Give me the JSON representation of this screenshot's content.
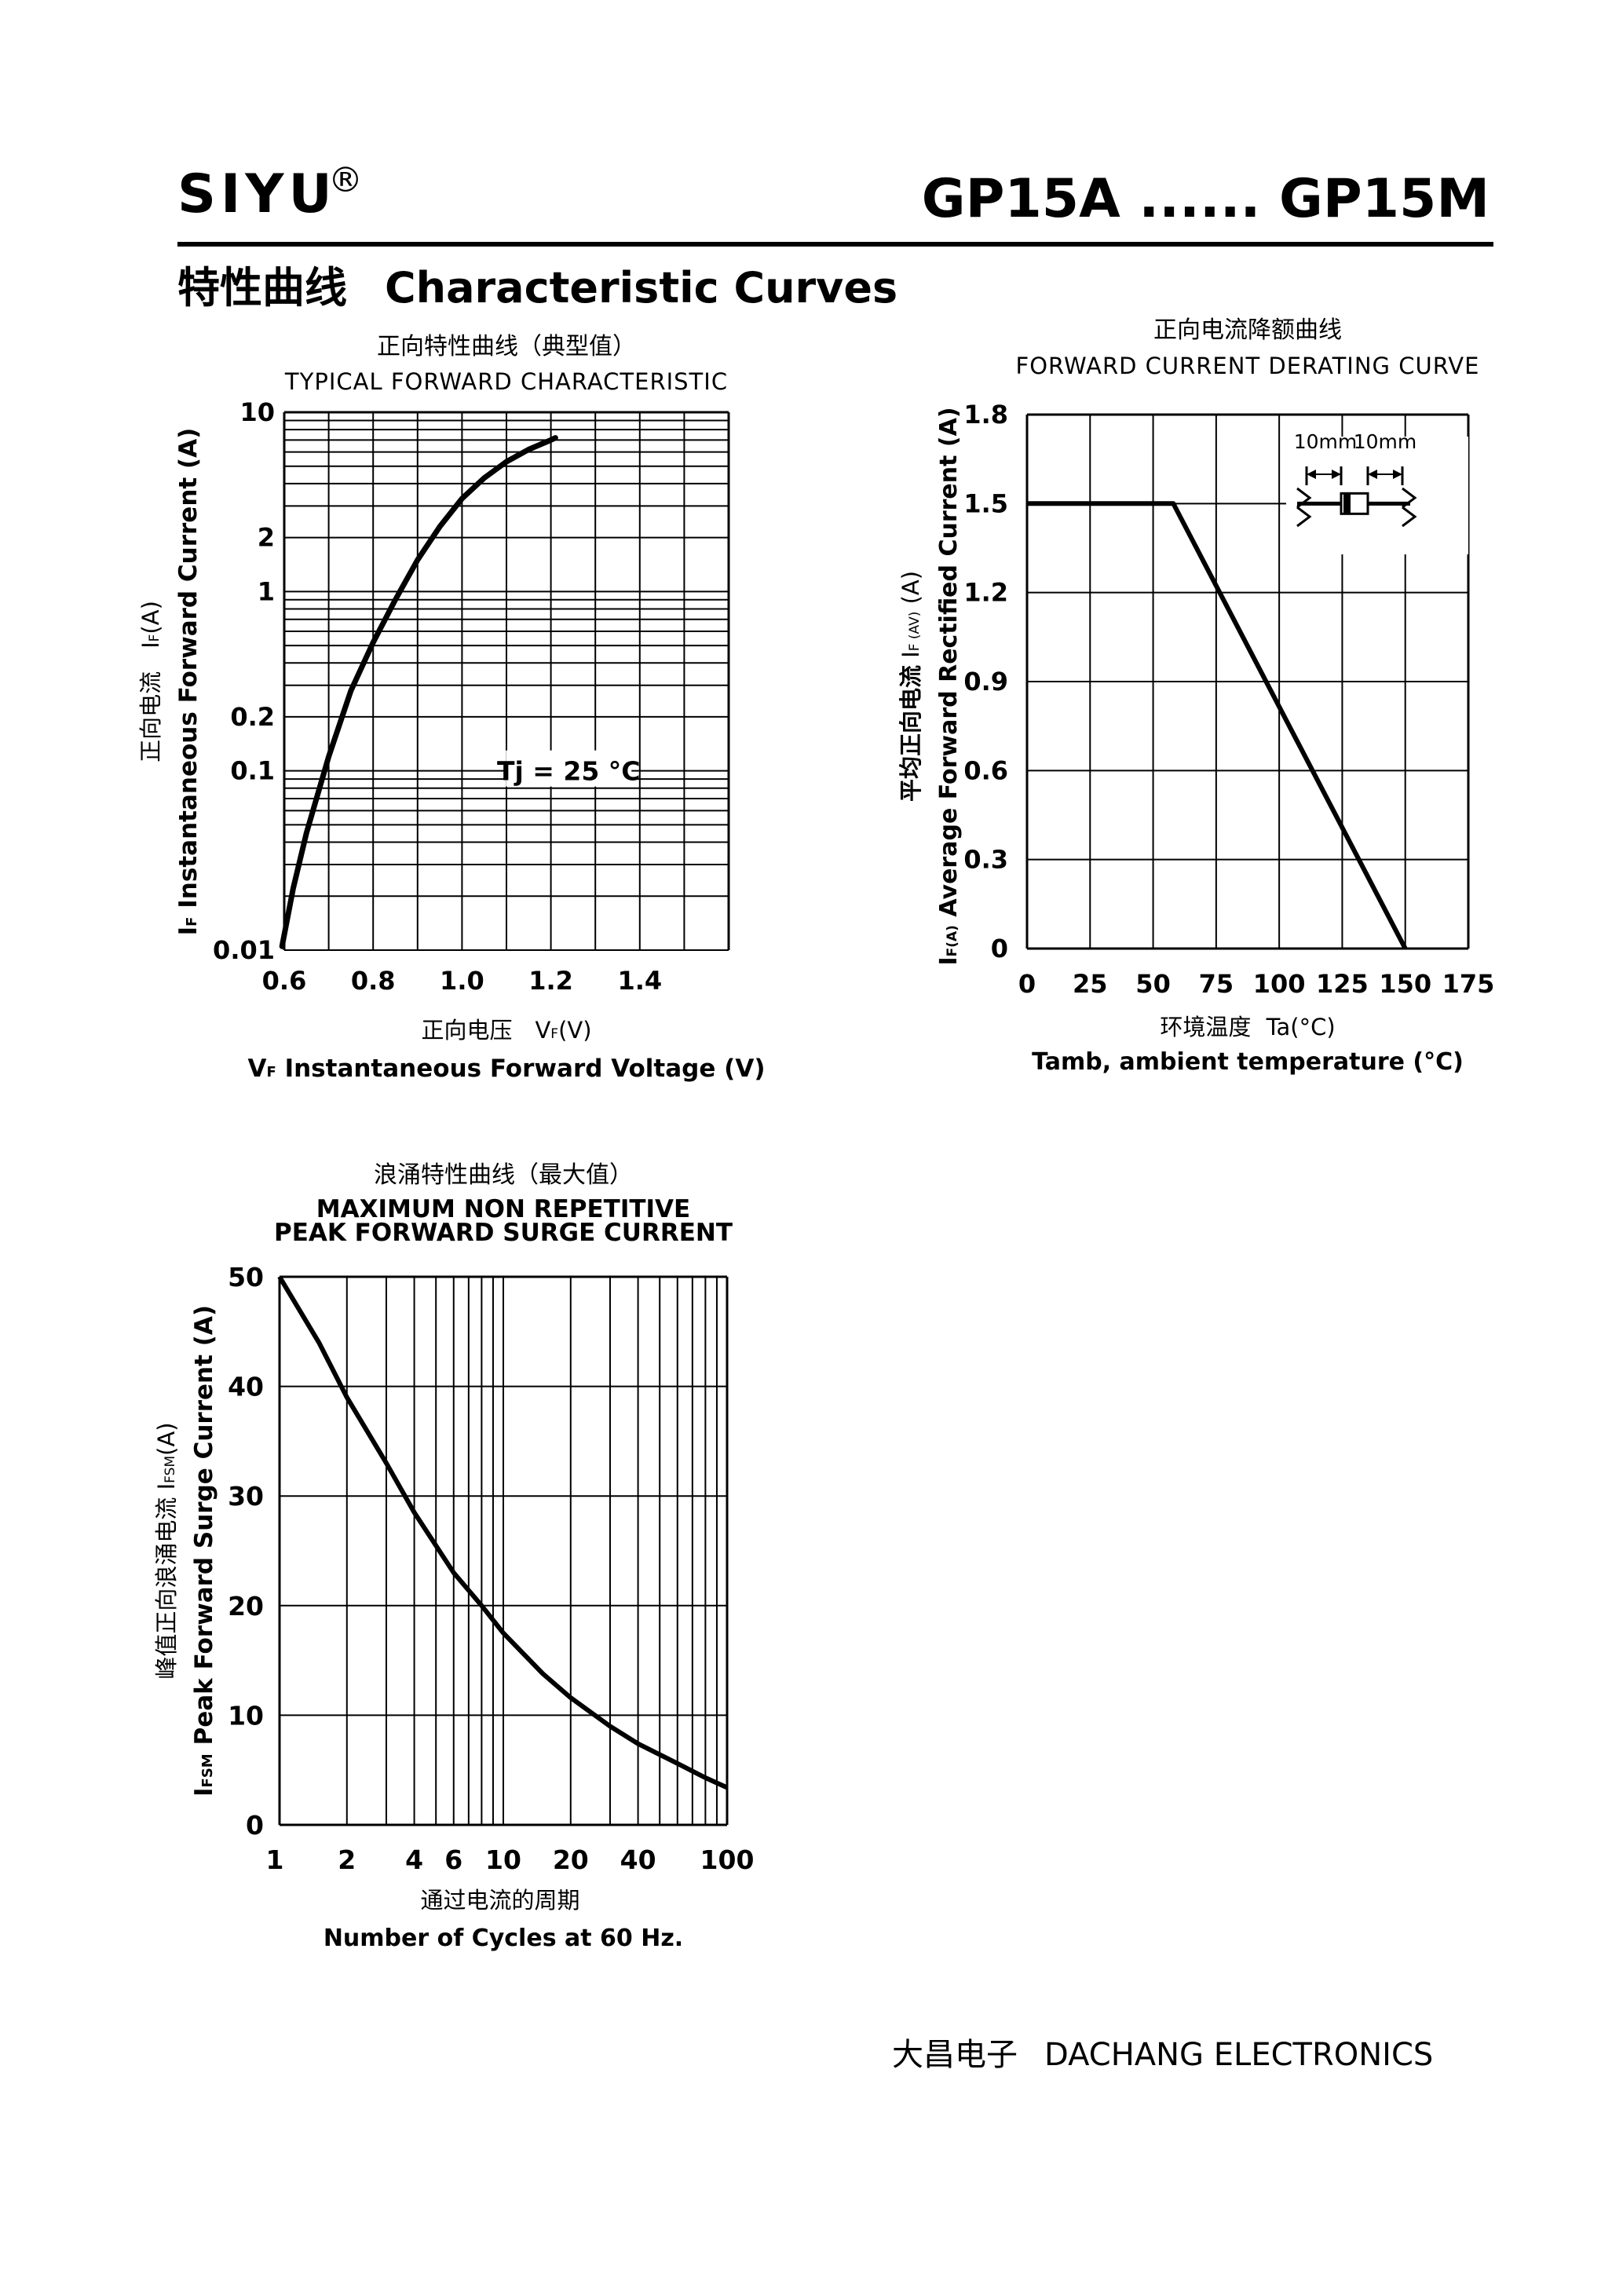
{
  "header": {
    "brand": "SIYU",
    "registered_mark": "®",
    "part_range": "GP15A ...... GP15M",
    "section_title_cn": "特性曲线",
    "section_title_en": "Characteristic Curves"
  },
  "footer": {
    "company_cn": "大昌电子",
    "company_en": "DACHANG ELECTRONICS"
  },
  "chart_data": [
    {
      "id": "forward-characteristic",
      "type": "line",
      "title_cn": "正向特性曲线（典型值）",
      "title": "TYPICAL FORWARD CHARACTERISTIC",
      "xlabel_cn": "正向电压　V",
      "xlabel_cn_sub": "F",
      "xlabel_cn_unit": "(V)",
      "xlabel_sym": "V",
      "xlabel_sub": "F",
      "xlabel": "Instantaneous Forward Voltage (V)",
      "ylabel_cn": "正向电流　I",
      "ylabel_cn_sub": "F",
      "ylabel_cn_unit": "(A)",
      "ylabel_sym": "I",
      "ylabel_sub": "F",
      "ylabel": "Instantaneous Forward Current (A)",
      "xlim": [
        0.6,
        1.6
      ],
      "ylim": [
        0.01,
        10
      ],
      "yscale": "log",
      "grid": true,
      "xticks": [
        "0.6",
        "0.8",
        "1.0",
        "1.2",
        "1.4"
      ],
      "yticks": [
        "0.01",
        "0.1",
        "0.2",
        "1",
        "2",
        "10"
      ],
      "annotation": "Tj = 25 °C",
      "series": [
        {
          "x": [
            0.595,
            0.62,
            0.65,
            0.7,
            0.75,
            0.8,
            0.85,
            0.9,
            0.95,
            1.0,
            1.05,
            1.1,
            1.15,
            1.2,
            1.21
          ],
          "y": [
            0.0105,
            0.022,
            0.045,
            0.12,
            0.28,
            0.52,
            0.9,
            1.5,
            2.3,
            3.3,
            4.3,
            5.3,
            6.2,
            7.0,
            7.2
          ]
        }
      ]
    },
    {
      "id": "derating-curve",
      "type": "line",
      "title_cn": "正向电流降额曲线",
      "title": "FORWARD CURRENT DERATING CURVE",
      "xlabel_cn": "环境温度",
      "xlabel_cn_sym": "Ta",
      "xlabel_cn_unit": "(°C)",
      "xlabel": "Tamb, ambient temperature (°C)",
      "ylabel_cn": "平均正向电流",
      "ylabel_cn_sym": "I",
      "ylabel_cn_sub": "F (AV)",
      "ylabel_cn_unit": "(A)",
      "ylabel_sym": "I",
      "ylabel_sub": "F(A)",
      "ylabel": "Average Forward Rectified Current (A)",
      "xlim": [
        0,
        175
      ],
      "ylim": [
        0,
        1.8
      ],
      "grid": true,
      "xticks": [
        "0",
        "25",
        "50",
        "75",
        "100",
        "125",
        "150",
        "175"
      ],
      "yticks": [
        "0",
        "0.3",
        "0.6",
        "0.9",
        "1.2",
        "1.5",
        "1.8"
      ],
      "inset_labels": [
        "10mm",
        "10mm"
      ],
      "series": [
        {
          "x": [
            0,
            58,
            150
          ],
          "y": [
            1.5,
            1.5,
            0
          ]
        }
      ]
    },
    {
      "id": "surge-current",
      "type": "line",
      "title_cn": "浪涌特性曲线（最大值）",
      "title": "MAXIMUM NON REPETITIVE",
      "subtitle": "PEAK FORWARD SURGE CURRENT",
      "xlabel_cn": "通过电流的周期",
      "xlabel": "Number  of  Cycles at 60 Hz.",
      "ylabel_cn": "峰值正向浪涌电流",
      "ylabel_cn_sym": "I",
      "ylabel_cn_sub": "FSM",
      "ylabel_cn_unit": "(A)",
      "ylabel_sym": "I",
      "ylabel_sub": "FSM",
      "ylabel": "Peak Forward Surge Current (A)",
      "xlim": [
        1,
        100
      ],
      "xscale": "log",
      "ylim": [
        0,
        50
      ],
      "grid": true,
      "xticks": [
        "1",
        "2",
        "4",
        "6",
        "10",
        "20",
        "40",
        "100"
      ],
      "yticks": [
        "0",
        "10",
        "20",
        "30",
        "40",
        "50"
      ],
      "series": [
        {
          "x": [
            1,
            1.5,
            2,
            3,
            4,
            6,
            8,
            10,
            15,
            20,
            30,
            40,
            60,
            80,
            100
          ],
          "y": [
            50,
            44,
            39,
            33,
            28.5,
            23,
            20,
            17.5,
            13.8,
            11.6,
            9,
            7.4,
            5.6,
            4.3,
            3.4
          ]
        }
      ]
    }
  ]
}
